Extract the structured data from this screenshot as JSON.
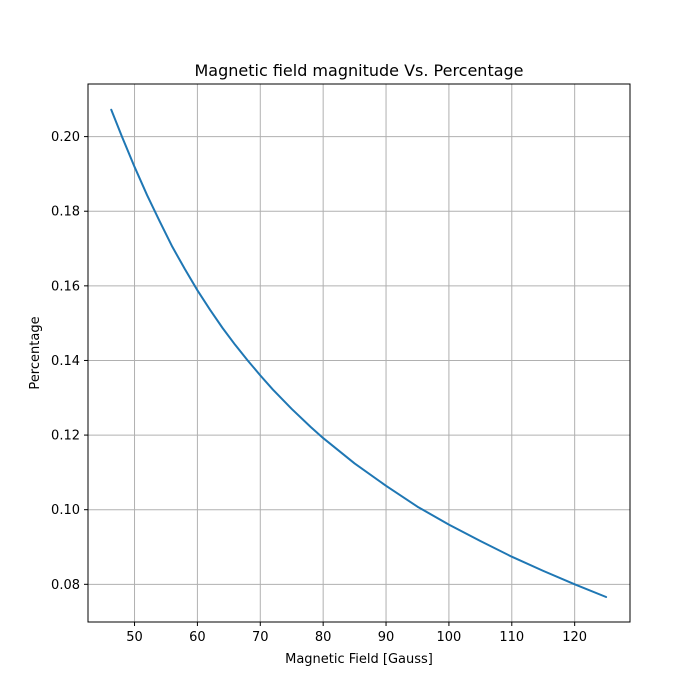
{
  "chart_data": {
    "type": "line",
    "title": "Magnetic field magnitude Vs. Percentage",
    "xlabel": "Magnetic Field [Gauss]",
    "ylabel": "Percentage",
    "xlim": [
      42.6,
      128.8
    ],
    "ylim": [
      0.0699,
      0.2141
    ],
    "xticks": [
      50,
      60,
      70,
      80,
      90,
      100,
      110,
      120
    ],
    "xtick_labels": [
      "50",
      "60",
      "70",
      "80",
      "90",
      "100",
      "110",
      "120"
    ],
    "yticks": [
      0.08,
      0.1,
      0.12,
      0.14,
      0.16,
      0.18,
      0.2
    ],
    "ytick_labels": [
      "0.08",
      "0.10",
      "0.12",
      "0.14",
      "0.16",
      "0.18",
      "0.20"
    ],
    "grid": true,
    "series": [
      {
        "color": "#1f77b4",
        "x": [
          46.3,
          48,
          50,
          52,
          54,
          56,
          58,
          60,
          62,
          64,
          66,
          68,
          70,
          72,
          75,
          78,
          80,
          85,
          90,
          95,
          100,
          105,
          110,
          115,
          120,
          125
        ],
        "y": [
          0.2072,
          0.2,
          0.1919,
          0.1843,
          0.1773,
          0.1705,
          0.1645,
          0.1588,
          0.1536,
          0.1487,
          0.1442,
          0.14,
          0.136,
          0.1322,
          0.127,
          0.1222,
          0.1192,
          0.1124,
          0.1064,
          0.1008,
          0.096,
          0.0916,
          0.0874,
          0.0836,
          0.08,
          0.0766
        ]
      }
    ]
  }
}
